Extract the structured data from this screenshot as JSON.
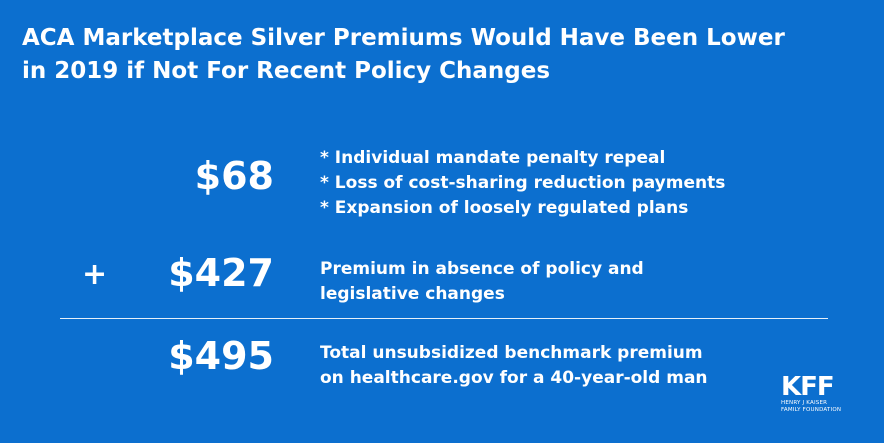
{
  "title": {
    "line1": "ACA Marketplace Silver Premiums Would Have Been Lower",
    "line2": "in 2019 if Not For Recent Policy Changes"
  },
  "rows": [
    {
      "amount": "$68",
      "lines": [
        "* Individual mandate penalty repeal",
        "* Loss of cost-sharing reduction payments",
        "* Expansion of loosely regulated plans"
      ]
    },
    {
      "operator": "+",
      "amount": "$427",
      "lines": [
        "Premium in absence of policy and",
        "legislative changes"
      ]
    },
    {
      "amount": "$495",
      "lines": [
        "Total unsubsidized benchmark premium",
        "on healthcare.gov for a 40-year-old man"
      ]
    }
  ],
  "logo": {
    "mark": "KFF",
    "line1": "HENRY J KAISER",
    "line2": "FAMILY FOUNDATION"
  },
  "colors": {
    "background": "#0c6fcf",
    "text": "#ffffff"
  }
}
